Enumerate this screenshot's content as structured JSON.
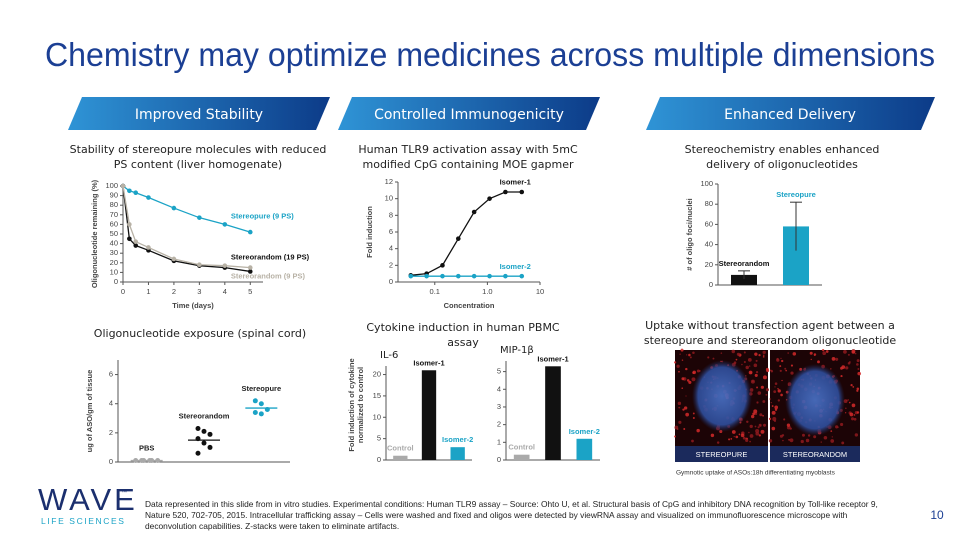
{
  "slide": {
    "title": "Chemistry may optimize medicines across multiple dimensions",
    "headers": [
      "Improved Stability",
      "Controlled Immunogenicity",
      "Enhanced Delivery"
    ],
    "captions": [
      "Stability of stereopure molecules with reduced PS content (liver homogenate)",
      "Human TLR9 activation assay with 5mC modified CpG containing MOE gapmer",
      "Stereochemistry enables enhanced delivery of oligonucleotides",
      "Oligonucleotide exposure (spinal cord)",
      "Cytokine induction in human PBMC assay",
      "Uptake without transfection agent between a stereopure and stereorandom oligonucleotide"
    ],
    "images": {
      "labels": [
        "STEREOPURE",
        "STEREORANDOM"
      ],
      "caption": "Gymnotic uptake of ASOs:18h differentiating myoblasts"
    },
    "logo": {
      "name": "WAVE",
      "mark": "™",
      "subtitle": "LIFE SCIENCES"
    },
    "footnote": "Data represented in this slide from in vitro studies.  Experimental conditions: Human TLR9 assay – Source: Ohto U, et al. Structural basis of CpG and inhibitory DNA recognition by Toll-like receptor 9, Nature 520, 702-705, 2015. Intracellular trafficking assay – Cells were washed and fixed and oligos were detected by viewRNA assay and visualized on immunofluorescence microscope with deconvolution capabilities.  Z-stacks were taken to eliminate artifacts.",
    "page_number": "10"
  },
  "chart_data": [
    {
      "type": "line",
      "x_label": "Time (days)",
      "y_label": "Oligonucleotide remaining (%)",
      "x": [
        0,
        0.25,
        0.5,
        1,
        2,
        3,
        4,
        5
      ],
      "xlim": [
        0,
        5.5
      ],
      "xticks": [
        0,
        1,
        2,
        3,
        4,
        5
      ],
      "ylim": [
        0,
        100
      ],
      "yticks": [
        0,
        10,
        20,
        30,
        40,
        50,
        60,
        70,
        80,
        90,
        100
      ],
      "series": [
        {
          "name": "Stereopure (9 PS)",
          "color": "#1ba3c6",
          "values": [
            100,
            95,
            93,
            88,
            77,
            67,
            60,
            52
          ]
        },
        {
          "name": "Stereorandom (19 PS)",
          "color": "#111111",
          "values": [
            100,
            45,
            38,
            33,
            22,
            17,
            15,
            11
          ]
        },
        {
          "name": "Stereorandom (9 PS)",
          "color": "#b8b2a6",
          "values": [
            100,
            60,
            42,
            36,
            24,
            18,
            17,
            15
          ]
        }
      ]
    },
    {
      "type": "line",
      "x_scale": "log",
      "x_label": "Concentration",
      "y_label": "Fold induction",
      "x": [
        0.035,
        0.07,
        0.14,
        0.28,
        0.56,
        1.1,
        2.2,
        4.5
      ],
      "xlim": [
        0.02,
        10
      ],
      "xticks": [
        0.1,
        {
          "value": 1,
          "label": "1.0"
        },
        10
      ],
      "ylim": [
        0,
        12
      ],
      "yticks": [
        0,
        2,
        4,
        6,
        8,
        10,
        12
      ],
      "series": [
        {
          "name": "Isomer-1",
          "color": "#111111",
          "values": [
            0.8,
            1.0,
            2.0,
            5.2,
            8.4,
            10.0,
            10.8,
            10.8
          ]
        },
        {
          "name": "Isomer-2",
          "color": "#1ba3c6",
          "values": [
            0.7,
            0.7,
            0.7,
            0.7,
            0.7,
            0.7,
            0.7,
            0.7
          ]
        }
      ]
    },
    {
      "type": "bar",
      "y_label": "# of oligo foci/nuclei",
      "categories": [
        "Stereorandom",
        "Stereopure"
      ],
      "values": [
        10,
        58
      ],
      "errors": [
        4,
        24
      ],
      "colors": [
        "#111111",
        "#1ba3c6"
      ],
      "ylim": [
        0,
        100
      ],
      "yticks": [
        0,
        20,
        40,
        60,
        80,
        100
      ]
    },
    {
      "type": "strip",
      "y_label": "ug of ASO/gm of tissue",
      "ylim": [
        0,
        7
      ],
      "yticks": [
        0,
        2,
        4,
        6
      ],
      "series": [
        {
          "name": "PBS",
          "color": "#a9a9a9",
          "values": [
            0.1,
            0.1,
            0.1,
            0.1,
            0.1,
            0.1
          ],
          "mean": 0.1
        },
        {
          "name": "Stereorandom",
          "color": "#111111",
          "values": [
            2.3,
            2.1,
            1.9,
            1.6,
            1.3,
            1.0,
            0.6
          ],
          "mean": 1.5
        },
        {
          "name": "Stereopure",
          "color": "#1ba3c6",
          "values": [
            4.2,
            4.0,
            3.6,
            3.4,
            3.3
          ],
          "mean": 3.7
        }
      ]
    },
    {
      "type": "bar",
      "title": "IL-6",
      "y_label": "Fold induction of cytokine normalized to control",
      "categories": [
        "Control",
        "Isomer-1",
        "Isomer-2"
      ],
      "values": [
        1,
        21,
        3
      ],
      "colors": [
        "#aaaaaa",
        "#111111",
        "#1ba3c6"
      ],
      "ylim": [
        0,
        22
      ],
      "yticks": [
        0,
        5,
        10,
        15,
        20
      ]
    },
    {
      "type": "bar",
      "title": "MIP-1β",
      "categories": [
        "Control",
        "Isomer-1",
        "Isomer-2"
      ],
      "values": [
        0.3,
        5.3,
        1.2
      ],
      "colors": [
        "#aaaaaa",
        "#111111",
        "#1ba3c6"
      ],
      "ylim": [
        0,
        5.6
      ],
      "yticks": [
        0,
        1,
        2,
        3,
        4,
        5
      ]
    }
  ]
}
